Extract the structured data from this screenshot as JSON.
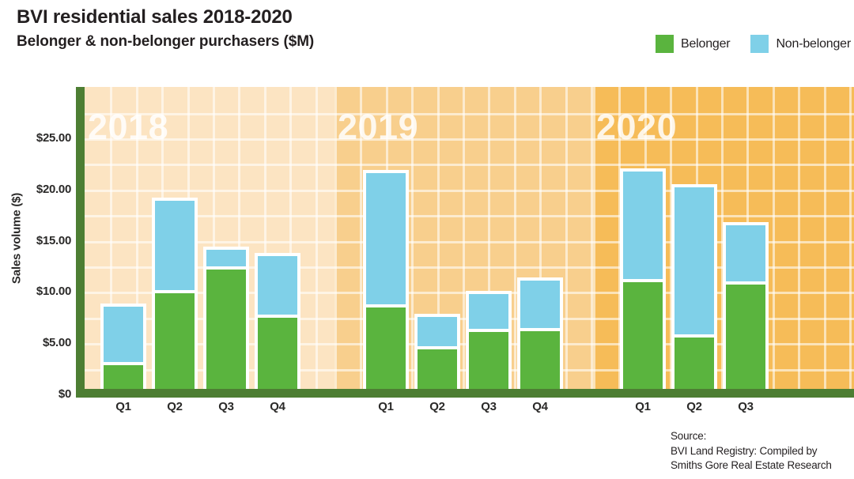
{
  "header": {
    "title": "BVI residential sales 2018-2020",
    "subtitle": "Belonger & non-belonger purchasers ($M)"
  },
  "legend": {
    "items": [
      {
        "label": "Belonger",
        "color": "#5ab43e"
      },
      {
        "label": "Non-belonger",
        "color": "#7fd0e8"
      }
    ]
  },
  "source": {
    "lines": [
      "Source:",
      "BVI Land Registry: Compiled by",
      "Smiths Gore Real Estate Research"
    ]
  },
  "colors": {
    "belonger": "#5ab43e",
    "non_belonger": "#7fd0e8",
    "axis_green": "#4d7e33",
    "panel_2018": "#fce4c2",
    "panel_2019": "#f8cf8d",
    "panel_2020": "#f6bc58",
    "text": "#231f20",
    "year_label": "rgba(255,255,255,0.85)"
  },
  "chart_data": {
    "type": "bar",
    "stacked": true,
    "title": "BVI residential sales 2018-2020",
    "subtitle": "Belonger & non-belonger purchasers ($M)",
    "ylabel": "Sales volume ($)",
    "xlabel": "",
    "ylim": [
      0,
      30
    ],
    "grid": true,
    "legend_position": "top-right",
    "units": "$M",
    "ytick_values": [
      0,
      5,
      10,
      15,
      20,
      25
    ],
    "ytick_labels": [
      "$0",
      "$5.00",
      "$10.00",
      "$15.00",
      "$20.00",
      "$25.00"
    ],
    "series_names": [
      "Belonger",
      "Non-belonger"
    ],
    "groups": [
      {
        "year": "2018",
        "categories": [
          "Q1",
          "Q2",
          "Q3",
          "Q4"
        ],
        "series": [
          {
            "name": "Belonger",
            "values": [
              3.2,
              10.2,
              12.5,
              7.8
            ]
          },
          {
            "name": "Non-belonger",
            "values": [
              5.7,
              9.0,
              1.9,
              6.0
            ]
          }
        ],
        "totals": [
          8.9,
          19.2,
          14.4,
          13.8
        ]
      },
      {
        "year": "2019",
        "categories": [
          "Q1",
          "Q2",
          "Q3",
          "Q4"
        ],
        "series": [
          {
            "name": "Belonger",
            "values": [
              8.8,
              4.7,
              6.4,
              6.5
            ]
          },
          {
            "name": "Non-belonger",
            "values": [
              13.1,
              3.2,
              3.7,
              4.9
            ]
          }
        ],
        "totals": [
          21.9,
          7.9,
          10.1,
          11.4
        ]
      },
      {
        "year": "2020",
        "categories": [
          "Q1",
          "Q2",
          "Q3"
        ],
        "series": [
          {
            "name": "Belonger",
            "values": [
              11.3,
              5.9,
              11.0
            ]
          },
          {
            "name": "Non-belonger",
            "values": [
              10.8,
              14.6,
              5.8
            ]
          }
        ],
        "totals": [
          22.1,
          20.5,
          16.8
        ]
      }
    ]
  }
}
